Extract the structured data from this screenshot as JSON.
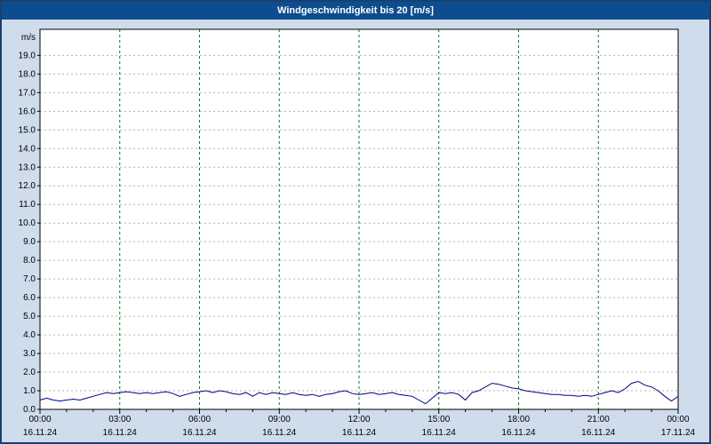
{
  "window": {
    "title": "Windgeschwindigkeit bis 20 [m/s]"
  },
  "colors": {
    "background": "#cfdcec",
    "titlebar_bg": "#0d4d8f",
    "titlebar_text": "#ffffff",
    "border": "#17406e",
    "plot_bg": "#ffffff",
    "axis": "#000000",
    "grid_horizontal": "#b3b3b3",
    "grid_vertical": "#117a11",
    "tick_text": "#000000",
    "line": "#000080"
  },
  "chart_data": {
    "type": "line",
    "title": "Windgeschwindigkeit bis 20 [m/s]",
    "xlabel": "",
    "ylabel": "m/s",
    "ylim": [
      0,
      20.4
    ],
    "ytick_min": 0,
    "ytick_max": 19,
    "ytick_step": 1,
    "x_hours": [
      0,
      24
    ],
    "grid": true,
    "legend": false,
    "xticks": [
      {
        "hour": 0,
        "time": "00:00",
        "date": "16.11.24"
      },
      {
        "hour": 3,
        "time": "03:00",
        "date": "16.11.24"
      },
      {
        "hour": 6,
        "time": "06:00",
        "date": "16.11.24"
      },
      {
        "hour": 9,
        "time": "09:00",
        "date": "16.11.24"
      },
      {
        "hour": 12,
        "time": "12:00",
        "date": "16.11.24"
      },
      {
        "hour": 15,
        "time": "15:00",
        "date": "16.11.24"
      },
      {
        "hour": 18,
        "time": "18:00",
        "date": "16.11.24"
      },
      {
        "hour": 21,
        "time": "21:00",
        "date": "16.11.24"
      },
      {
        "hour": 24,
        "time": "00:00",
        "date": "17.11.24"
      }
    ],
    "series": [
      {
        "name": "Windgeschwindigkeit",
        "color": "#000080",
        "x_start": 0,
        "x_step": 0.25,
        "values": [
          0.5,
          0.6,
          0.5,
          0.45,
          0.5,
          0.55,
          0.5,
          0.6,
          0.7,
          0.8,
          0.9,
          0.85,
          0.9,
          0.95,
          0.9,
          0.85,
          0.9,
          0.85,
          0.9,
          0.95,
          0.85,
          0.7,
          0.8,
          0.9,
          0.95,
          1.0,
          0.9,
          1.0,
          0.95,
          0.85,
          0.8,
          0.9,
          0.7,
          0.9,
          0.8,
          0.9,
          0.85,
          0.8,
          0.9,
          0.8,
          0.75,
          0.8,
          0.7,
          0.8,
          0.85,
          0.95,
          1.0,
          0.85,
          0.8,
          0.85,
          0.9,
          0.8,
          0.85,
          0.9,
          0.8,
          0.75,
          0.7,
          0.5,
          0.3,
          0.6,
          0.9,
          0.85,
          0.9,
          0.8,
          0.5,
          0.9,
          1.0,
          1.2,
          1.4,
          1.35,
          1.25,
          1.15,
          1.1,
          1.0,
          0.95,
          0.9,
          0.85,
          0.8,
          0.8,
          0.75,
          0.75,
          0.7,
          0.75,
          0.7,
          0.8,
          0.9,
          1.0,
          0.9,
          1.1,
          1.4,
          1.5,
          1.3,
          1.2,
          1.0,
          0.7,
          0.45,
          0.7
        ]
      }
    ]
  }
}
